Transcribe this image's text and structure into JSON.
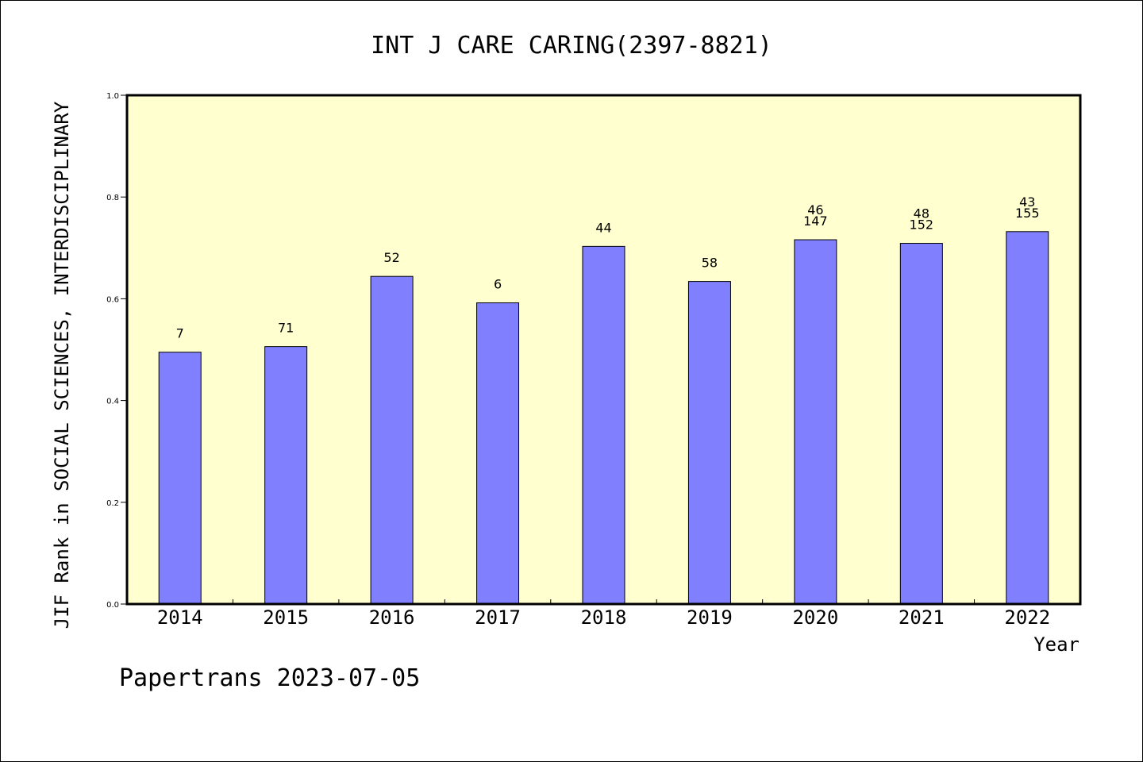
{
  "chart_data": {
    "type": "bar",
    "title": "INT J CARE CARING(2397-8821)",
    "xlabel": "Year",
    "ylabel": "JIF Rank in SOCIAL SCIENCES, INTERDISCIPLINARY",
    "ylim": [
      0,
      1.0
    ],
    "yticks": [
      "0.0",
      "0.2",
      "0.4",
      "0.6",
      "0.8",
      "1.0"
    ],
    "categories": [
      "2014",
      "2015",
      "2016",
      "2017",
      "2018",
      "2019",
      "2020",
      "2021",
      "2022"
    ],
    "values": [
      0.495,
      0.506,
      0.644,
      0.592,
      0.703,
      0.634,
      0.716,
      0.709,
      0.732
    ],
    "bar_labels": [
      [
        "7"
      ],
      [
        "71"
      ],
      [
        "52"
      ],
      [
        "6"
      ],
      [
        "44"
      ],
      [
        "58"
      ],
      [
        "46",
        "147"
      ],
      [
        "48",
        "152"
      ],
      [
        "43",
        "155"
      ]
    ],
    "grid": false,
    "plot_background": "#ffffd0",
    "bar_color": "#8080ff"
  },
  "footer": "Papertrans 2023-07-05"
}
